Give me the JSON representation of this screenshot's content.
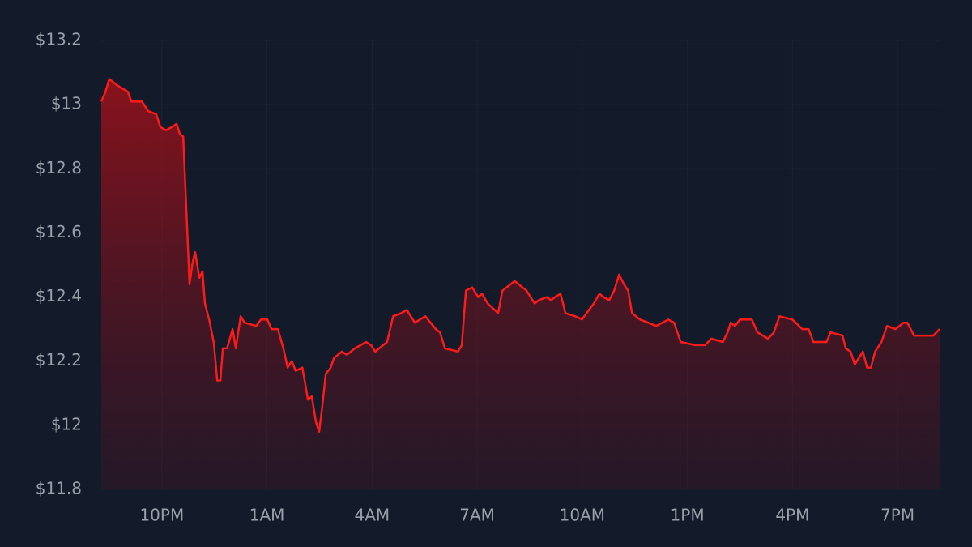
{
  "chart_data": {
    "type": "area",
    "color": "#ff1a1a",
    "grid": true,
    "xlim": [
      0.27,
      24.2
    ],
    "ylim": [
      11.8,
      13.2
    ],
    "xticks": [
      {
        "value": 2,
        "label": "10PM"
      },
      {
        "value": 5,
        "label": "1AM"
      },
      {
        "value": 8,
        "label": "4AM"
      },
      {
        "value": 11,
        "label": "7AM"
      },
      {
        "value": 14,
        "label": "10AM"
      },
      {
        "value": 17,
        "label": "1PM"
      },
      {
        "value": 20,
        "label": "4PM"
      },
      {
        "value": 23,
        "label": "7PM"
      }
    ],
    "yticks": [
      {
        "value": 11.8,
        "label": "$11.8"
      },
      {
        "value": 12,
        "label": "$12"
      },
      {
        "value": 12.2,
        "label": "$12.2"
      },
      {
        "value": 12.4,
        "label": "$12.4"
      },
      {
        "value": 12.6,
        "label": "$12.6"
      },
      {
        "value": 12.8,
        "label": "$12.8"
      },
      {
        "value": 13,
        "label": "$13"
      },
      {
        "value": 13.2,
        "label": "$13.2"
      }
    ],
    "x": [
      0.27,
      0.39,
      0.5,
      0.73,
      1.03,
      1.13,
      1.43,
      1.61,
      1.84,
      1.96,
      2.12,
      2.28,
      2.42,
      2.51,
      2.61,
      2.7,
      2.79,
      2.88,
      2.95,
      3.07,
      3.16,
      3.23,
      3.35,
      3.48,
      3.58,
      3.67,
      3.74,
      3.86,
      4.02,
      4.11,
      4.25,
      4.36,
      4.69,
      4.83,
      5.01,
      5.13,
      5.31,
      5.47,
      5.59,
      5.71,
      5.82,
      6.01,
      6.17,
      6.28,
      6.4,
      6.49,
      6.58,
      6.68,
      6.82,
      6.91,
      7.14,
      7.28,
      7.51,
      7.83,
      7.97,
      8.09,
      8.43,
      8.6,
      8.83,
      8.99,
      9.22,
      9.52,
      9.82,
      9.94,
      10.08,
      10.45,
      10.56,
      10.68,
      10.86,
      11.03,
      11.14,
      11.3,
      11.6,
      11.72,
      12.07,
      12.41,
      12.64,
      12.76,
      12.99,
      13.11,
      13.22,
      13.38,
      13.52,
      13.8,
      13.99,
      14.33,
      14.49,
      14.61,
      14.77,
      14.91,
      15.05,
      15.19,
      15.31,
      15.42,
      15.65,
      15.88,
      16.11,
      16.46,
      16.62,
      16.81,
      17.22,
      17.5,
      17.69,
      18.01,
      18.15,
      18.24,
      18.36,
      18.5,
      18.84,
      19.0,
      19.3,
      19.47,
      19.63,
      20.0,
      20.28,
      20.46,
      20.6,
      20.97,
      21.09,
      21.43,
      21.52,
      21.66,
      21.78,
      22.01,
      22.13,
      22.24,
      22.36,
      22.54,
      22.7,
      22.94,
      23.17,
      23.28,
      23.47,
      23.86,
      24.02,
      24.2
    ],
    "values": [
      13.01,
      13.04,
      13.08,
      13.06,
      13.04,
      13.01,
      13.01,
      12.98,
      12.97,
      12.93,
      12.92,
      12.93,
      12.94,
      12.91,
      12.9,
      12.67,
      12.44,
      12.51,
      12.54,
      12.46,
      12.48,
      12.38,
      12.33,
      12.26,
      12.14,
      12.14,
      12.24,
      12.24,
      12.3,
      12.24,
      12.34,
      12.32,
      12.31,
      12.33,
      12.33,
      12.3,
      12.3,
      12.24,
      12.18,
      12.2,
      12.17,
      12.18,
      12.08,
      12.09,
      12.01,
      11.98,
      12.06,
      12.16,
      12.18,
      12.21,
      12.23,
      12.22,
      12.24,
      12.26,
      12.25,
      12.23,
      12.26,
      12.34,
      12.35,
      12.36,
      12.32,
      12.34,
      12.3,
      12.29,
      12.24,
      12.23,
      12.25,
      12.42,
      12.43,
      12.4,
      12.41,
      12.38,
      12.35,
      12.42,
      12.45,
      12.42,
      12.38,
      12.39,
      12.4,
      12.39,
      12.4,
      12.41,
      12.35,
      12.34,
      12.33,
      12.38,
      12.41,
      12.4,
      12.39,
      12.42,
      12.47,
      12.44,
      12.42,
      12.35,
      12.33,
      12.32,
      12.31,
      12.33,
      12.32,
      12.26,
      12.25,
      12.25,
      12.27,
      12.26,
      12.29,
      12.32,
      12.31,
      12.33,
      12.33,
      12.29,
      12.27,
      12.29,
      12.34,
      12.33,
      12.3,
      12.3,
      12.26,
      12.26,
      12.29,
      12.28,
      12.24,
      12.23,
      12.19,
      12.23,
      12.18,
      12.18,
      12.23,
      12.26,
      12.31,
      12.3,
      12.32,
      12.32,
      12.28,
      12.28,
      12.28,
      12.3
    ]
  }
}
